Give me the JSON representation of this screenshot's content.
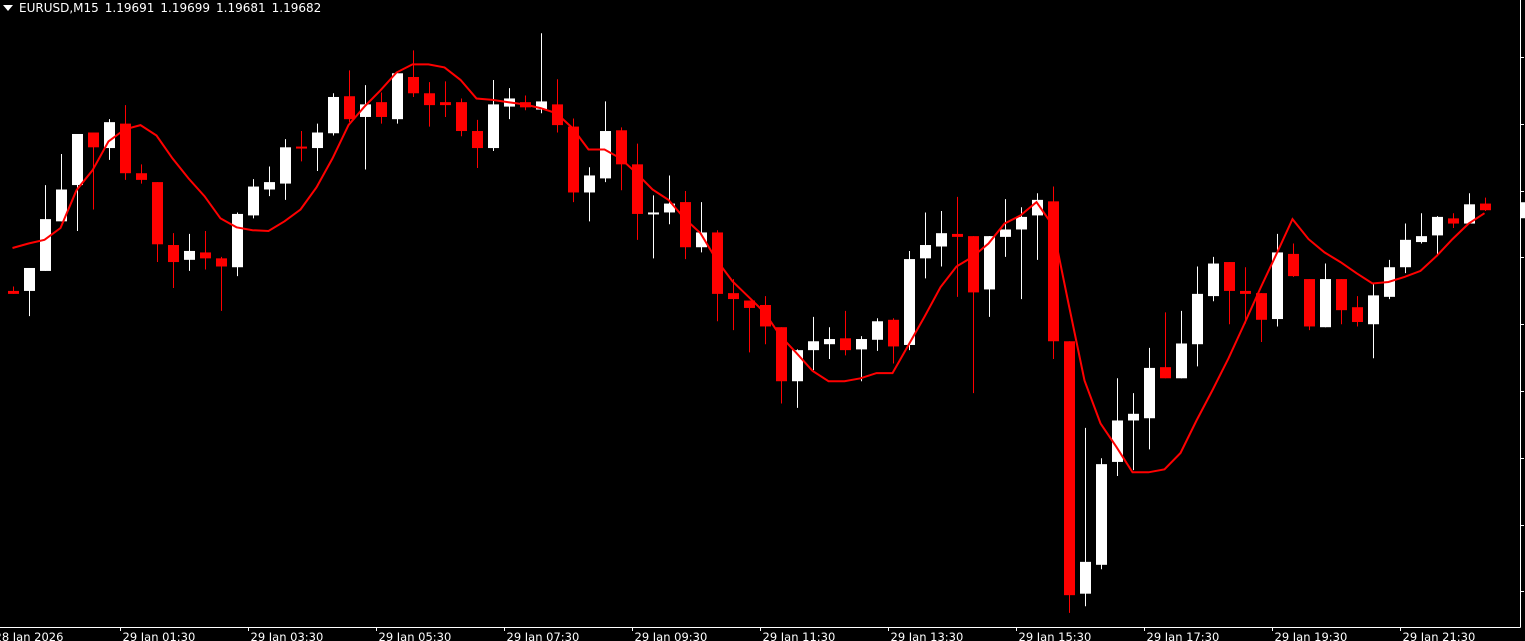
{
  "header": {
    "symbol_timeframe": "EURUSD,M15",
    "open": "1.19691",
    "high": "1.19699",
    "low": "1.19681",
    "close": "1.19682",
    "menu_icon": "triangle-down-icon"
  },
  "colors": {
    "background": "#000000",
    "bull": "#ffffff",
    "bear": "#ff0000",
    "ma_line": "#ff0000",
    "axis": "#ffffff"
  },
  "chart_data": {
    "type": "candlestick",
    "symbol": "EURUSD",
    "timeframe": "M15",
    "ylim": [
      1.19119,
      1.19966
    ],
    "grid": false,
    "x_labels": [
      {
        "index": -1,
        "label": "28 Jan 2026"
      },
      {
        "index": 7,
        "label": "29 Jan 01:30"
      },
      {
        "index": 15,
        "label": "29 Jan 03:30"
      },
      {
        "index": 23,
        "label": "29 Jan 05:30"
      },
      {
        "index": 31,
        "label": "29 Jan 07:30"
      },
      {
        "index": 39,
        "label": "29 Jan 09:30"
      },
      {
        "index": 47,
        "label": "29 Jan 11:30"
      },
      {
        "index": 55,
        "label": "29 Jan 13:30"
      },
      {
        "index": 63,
        "label": "29 Jan 15:30"
      },
      {
        "index": 71,
        "label": "29 Jan 17:30"
      },
      {
        "index": 79,
        "label": "29 Jan 19:30"
      },
      {
        "index": 87,
        "label": "29 Jan 21:30"
      }
    ],
    "ohlc_fields": [
      "open",
      "high",
      "low",
      "close"
    ],
    "candles": [
      [
        1.19573,
        1.19579,
        1.19569,
        1.19569
      ],
      [
        1.19573,
        1.19604,
        1.19539,
        1.19604
      ],
      [
        1.196,
        1.19716,
        1.196,
        1.1967
      ],
      [
        1.19667,
        1.19758,
        1.19667,
        1.1971
      ],
      [
        1.19716,
        1.19785,
        1.19654,
        1.19785
      ],
      [
        1.19787,
        1.19787,
        1.19683,
        1.19767
      ],
      [
        1.19766,
        1.19805,
        1.1975,
        1.19801
      ],
      [
        1.19799,
        1.19824,
        1.19723,
        1.19732
      ],
      [
        1.19732,
        1.19744,
        1.19718,
        1.19723
      ],
      [
        1.1972,
        1.1972,
        1.19612,
        1.19636
      ],
      [
        1.19635,
        1.19651,
        1.19577,
        1.19612
      ],
      [
        1.19615,
        1.1965,
        1.196,
        1.19627
      ],
      [
        1.19625,
        1.19654,
        1.19602,
        1.19617
      ],
      [
        1.19617,
        1.19619,
        1.19546,
        1.19606
      ],
      [
        1.19605,
        1.19679,
        1.19593,
        1.19677
      ],
      [
        1.19675,
        1.19724,
        1.19671,
        1.19714
      ],
      [
        1.1971,
        1.19741,
        1.19701,
        1.1972
      ],
      [
        1.19718,
        1.19778,
        1.19696,
        1.19767
      ],
      [
        1.19768,
        1.19789,
        1.19748,
        1.19766
      ],
      [
        1.19766,
        1.19799,
        1.19735,
        1.19787
      ],
      [
        1.19786,
        1.1984,
        1.19783,
        1.19835
      ],
      [
        1.19836,
        1.19871,
        1.19801,
        1.19805
      ],
      [
        1.19808,
        1.19851,
        1.19737,
        1.19825
      ],
      [
        1.19828,
        1.19841,
        1.19799,
        1.19808
      ],
      [
        1.19805,
        1.19867,
        1.19799,
        1.19867
      ],
      [
        1.19862,
        1.19898,
        1.19835,
        1.1984
      ],
      [
        1.1984,
        1.19855,
        1.19795,
        1.19824
      ],
      [
        1.19828,
        1.19856,
        1.19808,
        1.19824
      ],
      [
        1.19828,
        1.19833,
        1.19782,
        1.19789
      ],
      [
        1.19789,
        1.19804,
        1.19739,
        1.19766
      ],
      [
        1.19766,
        1.19858,
        1.19762,
        1.19825
      ],
      [
        1.19822,
        1.19847,
        1.19805,
        1.19833
      ],
      [
        1.19828,
        1.19837,
        1.19817,
        1.19821
      ],
      [
        1.19818,
        1.19921,
        1.19813,
        1.19829
      ],
      [
        1.19825,
        1.19859,
        1.19787,
        1.19797
      ],
      [
        1.19795,
        1.19806,
        1.19693,
        1.19706
      ],
      [
        1.19706,
        1.1974,
        1.19667,
        1.19729
      ],
      [
        1.19725,
        1.19829,
        1.1972,
        1.19789
      ],
      [
        1.1979,
        1.19794,
        1.19709,
        1.19744
      ],
      [
        1.19744,
        1.19772,
        1.19642,
        1.19677
      ],
      [
        1.19677,
        1.19702,
        1.19617,
        1.19679
      ],
      [
        1.19679,
        1.19729,
        1.19663,
        1.19691
      ],
      [
        1.19693,
        1.19708,
        1.19616,
        1.19632
      ],
      [
        1.19632,
        1.19693,
        1.19625,
        1.19652
      ],
      [
        1.19652,
        1.19655,
        1.19532,
        1.19569
      ],
      [
        1.1957,
        1.19589,
        1.1952,
        1.19562
      ],
      [
        1.1956,
        1.1956,
        1.1949,
        1.1955
      ],
      [
        1.19554,
        1.19566,
        1.19501,
        1.19525
      ],
      [
        1.19524,
        1.19524,
        1.19421,
        1.19451
      ],
      [
        1.19451,
        1.19494,
        1.19415,
        1.19493
      ],
      [
        1.19493,
        1.19538,
        1.19466,
        1.19505
      ],
      [
        1.19501,
        1.19524,
        1.19481,
        1.19508
      ],
      [
        1.19509,
        1.19546,
        1.19486,
        1.19493
      ],
      [
        1.19494,
        1.19512,
        1.19451,
        1.19508
      ],
      [
        1.19507,
        1.19536,
        1.19492,
        1.19532
      ],
      [
        1.19534,
        1.19536,
        1.19475,
        1.19498
      ],
      [
        1.195,
        1.19627,
        1.19493,
        1.19616
      ],
      [
        1.19617,
        1.19679,
        1.1959,
        1.19635
      ],
      [
        1.19633,
        1.19681,
        1.19606,
        1.19651
      ],
      [
        1.1965,
        1.197,
        1.19565,
        1.19646
      ],
      [
        1.19647,
        1.19647,
        1.19435,
        1.19571
      ],
      [
        1.19575,
        1.19647,
        1.19538,
        1.19647
      ],
      [
        1.19646,
        1.19697,
        1.19619,
        1.19656
      ],
      [
        1.19656,
        1.19686,
        1.19562,
        1.19673
      ],
      [
        1.19675,
        1.19705,
        1.19615,
        1.19696
      ],
      [
        1.19694,
        1.19714,
        1.19481,
        1.19505
      ],
      [
        1.19505,
        1.19505,
        1.19138,
        1.19162
      ],
      [
        1.19164,
        1.19388,
        1.19147,
        1.19207
      ],
      [
        1.19203,
        1.19347,
        1.19197,
        1.19339
      ],
      [
        1.19342,
        1.19455,
        1.19323,
        1.19398
      ],
      [
        1.19398,
        1.19435,
        1.19331,
        1.19407
      ],
      [
        1.19401,
        1.19496,
        1.19359,
        1.19469
      ],
      [
        1.1947,
        1.19544,
        1.19455,
        1.19455
      ],
      [
        1.19455,
        1.19546,
        1.19455,
        1.19502
      ],
      [
        1.19501,
        1.19606,
        1.19471,
        1.19569
      ],
      [
        1.19566,
        1.19619,
        1.19559,
        1.1961
      ],
      [
        1.19612,
        1.19612,
        1.19528,
        1.19573
      ],
      [
        1.19573,
        1.19605,
        1.19529,
        1.19569
      ],
      [
        1.1957,
        1.1957,
        1.19504,
        1.19534
      ],
      [
        1.19535,
        1.1965,
        1.19525,
        1.19625
      ],
      [
        1.19623,
        1.19637,
        1.19592,
        1.19593
      ],
      [
        1.19589,
        1.19589,
        1.1952,
        1.19525
      ],
      [
        1.19524,
        1.1961,
        1.19524,
        1.19589
      ],
      [
        1.19589,
        1.19589,
        1.19528,
        1.19547
      ],
      [
        1.19551,
        1.19566,
        1.19525,
        1.19531
      ],
      [
        1.19528,
        1.19582,
        1.19482,
        1.19567
      ],
      [
        1.19565,
        1.19615,
        1.19562,
        1.19605
      ],
      [
        1.19605,
        1.19664,
        1.19597,
        1.19642
      ],
      [
        1.19639,
        1.19678,
        1.19637,
        1.19647
      ],
      [
        1.19648,
        1.19674,
        1.1962,
        1.19673
      ],
      [
        1.19671,
        1.19678,
        1.19658,
        1.19664
      ],
      [
        1.19664,
        1.19705,
        1.19664,
        1.1969
      ],
      [
        1.19691,
        1.19699,
        1.19681,
        1.19682
      ]
    ],
    "ma_line": [
      1.19631,
      1.19637,
      1.19642,
      1.19658,
      1.19709,
      1.19736,
      1.19775,
      1.19791,
      1.19797,
      1.19783,
      1.19752,
      1.19725,
      1.19701,
      1.19671,
      1.19659,
      1.19655,
      1.19654,
      1.19667,
      1.19683,
      1.19713,
      1.19752,
      1.19797,
      1.19822,
      1.19844,
      1.19868,
      1.19879,
      1.19879,
      1.19875,
      1.19858,
      1.19833,
      1.19831,
      1.19828,
      1.19825,
      1.1982,
      1.19813,
      1.19793,
      1.19764,
      1.19764,
      1.19752,
      1.19732,
      1.1971,
      1.19696,
      1.19671,
      1.19651,
      1.19615,
      1.19586,
      1.19565,
      1.19544,
      1.19512,
      1.19489,
      1.19465,
      1.19451,
      1.19451,
      1.19455,
      1.19462,
      1.19462,
      1.195,
      1.19538,
      1.19578,
      1.19606,
      1.19619,
      1.19637,
      1.19664,
      1.19675,
      1.19693,
      1.19662,
      1.19556,
      1.19452,
      1.19394,
      1.19362,
      1.19328,
      1.19328,
      1.19332,
      1.19354,
      1.19398,
      1.19439,
      1.19482,
      1.19529,
      1.19577,
      1.19623,
      1.1967,
      1.19643,
      1.19625,
      1.19612,
      1.19597,
      1.19583,
      1.19585,
      1.19592,
      1.196,
      1.1962,
      1.19643,
      1.19664,
      1.19678
    ],
    "last_price": 1.19682
  }
}
